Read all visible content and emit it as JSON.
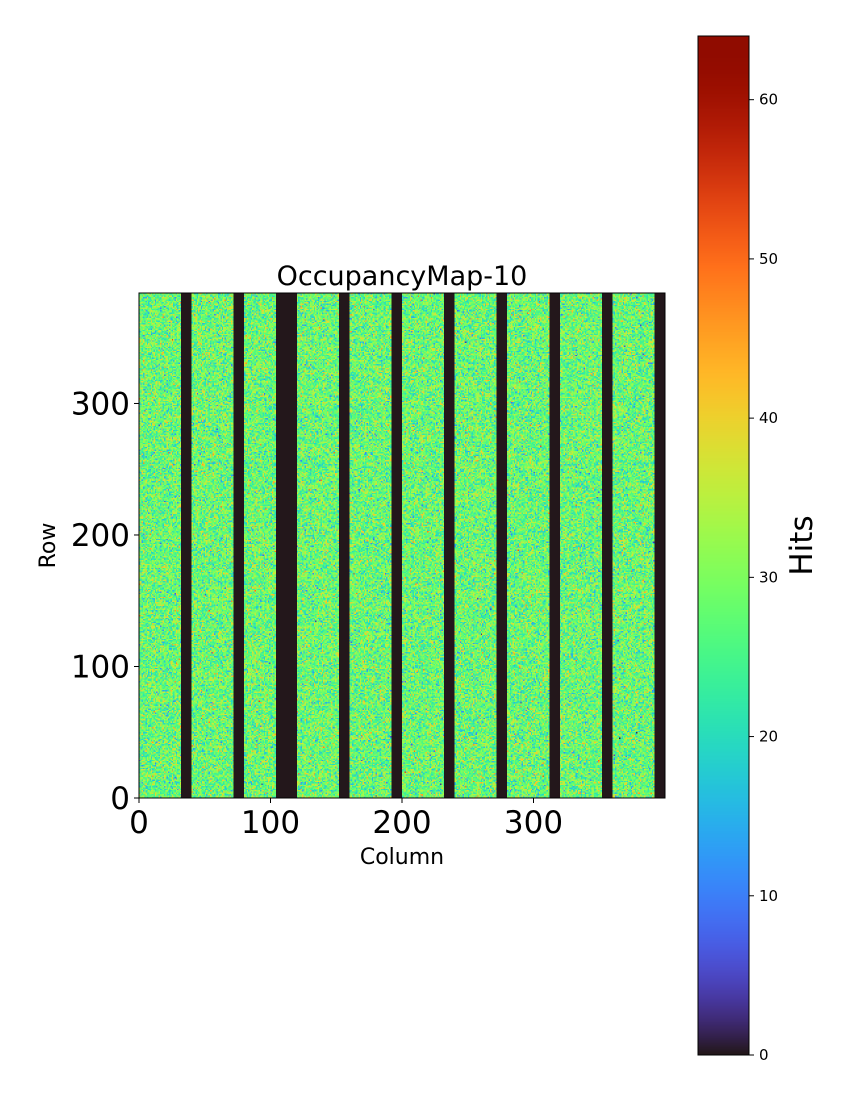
{
  "chart_data": {
    "type": "heatmap",
    "title": "OccupancyMap-10",
    "xlabel": "Column",
    "ylabel": "Row",
    "xlim": [
      0,
      400
    ],
    "ylim": [
      0,
      384
    ],
    "xticks": [
      0,
      100,
      200,
      300
    ],
    "yticks": [
      0,
      100,
      200,
      300
    ],
    "grid": false,
    "colormap": "turbo",
    "colorbar": {
      "label": "Hits",
      "range": [
        0,
        64
      ],
      "ticks": [
        0,
        10,
        20,
        30,
        40,
        50,
        60
      ]
    },
    "typical_hits_range": [
      15,
      40
    ],
    "typical_hits_mean": 28,
    "empty_column_bands": [
      [
        32,
        40
      ],
      [
        72,
        80
      ],
      [
        104,
        120
      ],
      [
        152,
        160
      ],
      [
        192,
        200
      ],
      [
        232,
        240
      ],
      [
        272,
        280
      ],
      [
        312,
        320
      ],
      [
        352,
        360
      ],
      [
        392,
        400
      ]
    ],
    "empty_band_hits": 0
  },
  "colors": {
    "background": "#ffffff",
    "empty_band": "#30123b"
  }
}
